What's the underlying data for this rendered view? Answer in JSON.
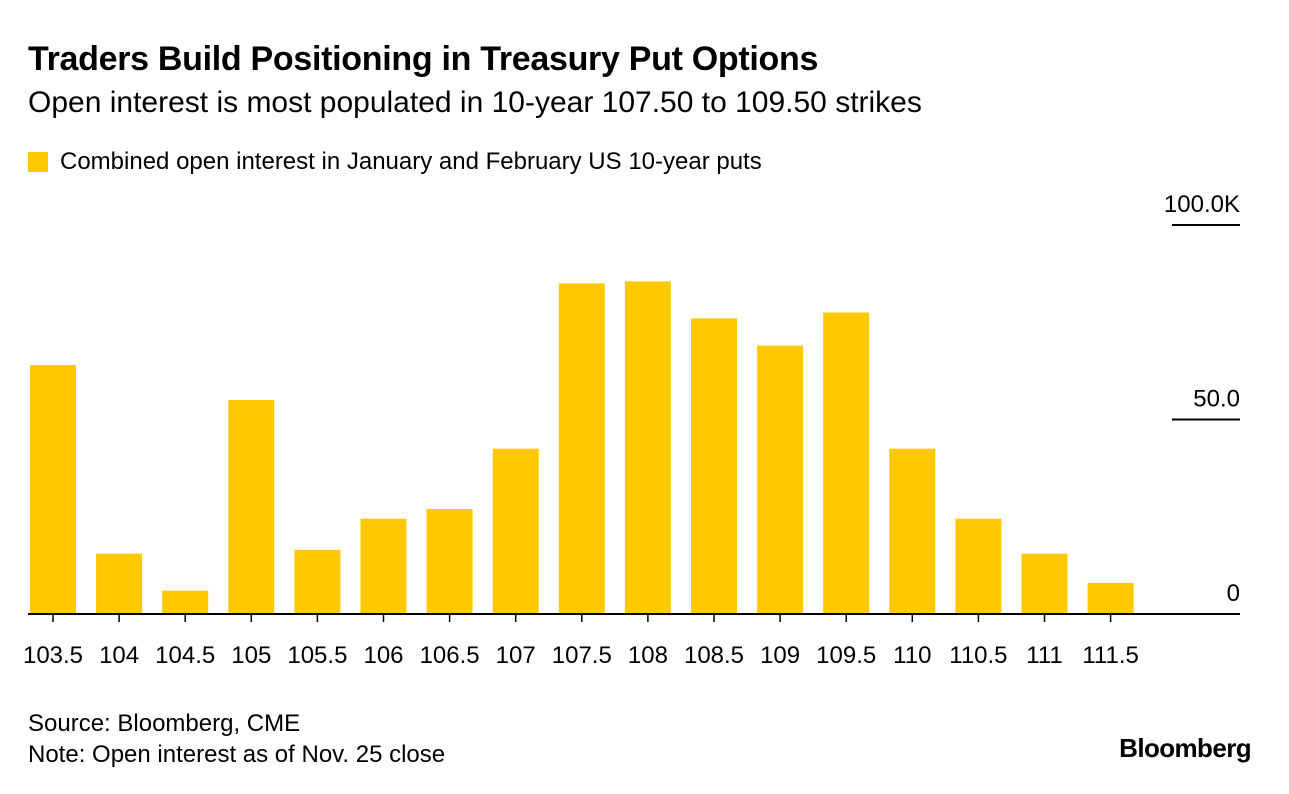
{
  "title": "Traders Build Positioning in Treasury Put Options",
  "subtitle": "Open interest is most populated in 10-year 107.50 to 109.50 strikes",
  "colors": {
    "bar": "#FFC800",
    "axis": "#000000",
    "text": "#000000"
  },
  "footer": {
    "source": "Source: Bloomberg, CME",
    "note": "Note: Open interest as of Nov. 25 close",
    "brand": "Bloomberg"
  },
  "chart_data": {
    "type": "bar",
    "title": "Traders Build Positioning in Treasury Put Options",
    "subtitle": "Open interest is most populated in 10-year 107.50 to 109.50 strikes",
    "xlabel": "",
    "ylabel": "",
    "legend": {
      "placement": "top-left",
      "entries": [
        "Combined open interest in January and February US 10-year puts"
      ]
    },
    "categories": [
      "103.5",
      "104",
      "104.5",
      "105",
      "105.5",
      "106",
      "106.5",
      "107",
      "107.5",
      "108",
      "108.5",
      "109",
      "109.5",
      "110",
      "110.5",
      "111",
      "111.5"
    ],
    "series": [
      {
        "name": "Combined open interest in January and February US 10-year puts",
        "values": [
          64,
          15.5,
          6,
          55,
          16.5,
          24.5,
          27,
          42.5,
          85,
          85.5,
          76,
          69,
          77.5,
          42.5,
          24.5,
          15.5,
          8
        ]
      }
    ],
    "ylim": [
      0,
      100
    ],
    "yticks": [
      {
        "value": 0,
        "label": "0"
      },
      {
        "value": 50,
        "label": "50.0"
      },
      {
        "value": 100,
        "label": "100.0K"
      }
    ],
    "grid": false,
    "y_axis_side": "right"
  }
}
